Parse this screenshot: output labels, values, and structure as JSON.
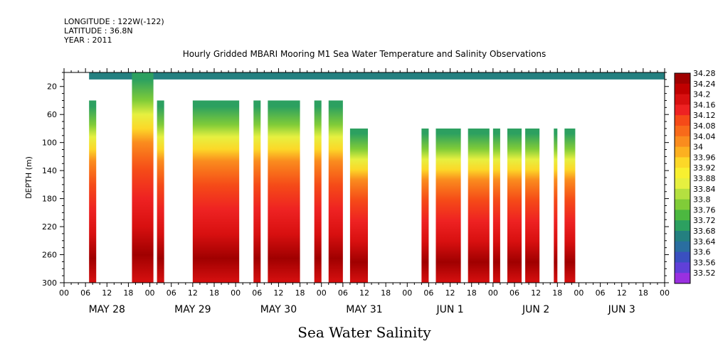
{
  "header": {
    "longitude": "LONGITUDE : 122W(-122)",
    "latitude": "LATITUDE : 36.8N",
    "year": "YEAR : 2011"
  },
  "chart_data": {
    "type": "heatmap",
    "title": "Hourly Gridded MBARI Mooring M1 Sea Water Temperature and Salinity Observations",
    "xlabel": "Sea Water Salinity",
    "ylabel": "DEPTH (m)",
    "x_day_labels": [
      "MAY 28",
      "MAY 29",
      "MAY 30",
      "MAY 31",
      "JUN  1",
      "JUN  2",
      "JUN  3"
    ],
    "x_hour_labels": [
      "00",
      "06",
      "12",
      "18",
      "00",
      "06",
      "12",
      "18",
      "00",
      "06",
      "12",
      "18",
      "00",
      "06",
      "12",
      "18",
      "00",
      "06",
      "12",
      "18",
      "00",
      "06",
      "12",
      "18",
      "00",
      "06",
      "12",
      "18",
      "00"
    ],
    "xlim_hours": [
      0,
      168
    ],
    "ylim": [
      300,
      0
    ],
    "y_ticks": [
      20,
      60,
      100,
      140,
      180,
      220,
      260,
      300
    ],
    "colorbar": {
      "labels": [
        "34.28",
        "34.24",
        "34.2",
        "34.16",
        "34.12",
        "34.08",
        "34.04",
        "34",
        "33.96",
        "33.92",
        "33.88",
        "33.84",
        "33.8",
        "33.76",
        "33.72",
        "33.68",
        "33.64",
        "33.6",
        "33.56",
        "33.52"
      ],
      "colors": [
        "#a00000",
        "#c00000",
        "#d81010",
        "#ee2222",
        "#f54a18",
        "#f86a1a",
        "#fa8c1e",
        "#fcb020",
        "#fcd828",
        "#f8f030",
        "#e6f040",
        "#b4e040",
        "#80cc38",
        "#4cb840",
        "#2ca060",
        "#248080",
        "#2a6ea0",
        "#3a50c0",
        "#6040d8",
        "#9a30e0"
      ]
    },
    "salinity_profile": [
      {
        "depth": 10,
        "salinity": 33.72
      },
      {
        "depth": 40,
        "salinity": 33.8
      },
      {
        "depth": 60,
        "salinity": 33.88
      },
      {
        "depth": 80,
        "salinity": 33.96
      },
      {
        "depth": 100,
        "salinity": 34.02
      },
      {
        "depth": 120,
        "salinity": 34.06
      },
      {
        "depth": 140,
        "salinity": 34.1
      },
      {
        "depth": 180,
        "salinity": 34.13
      },
      {
        "depth": 220,
        "salinity": 34.18
      },
      {
        "depth": 260,
        "salinity": 34.25
      },
      {
        "depth": 300,
        "salinity": 34.2
      }
    ],
    "data_segments_hours": [
      [
        7,
        9,
        40
      ],
      [
        19,
        25,
        0
      ],
      [
        26,
        28,
        40
      ],
      [
        36,
        49,
        40
      ],
      [
        53,
        55,
        40
      ],
      [
        57,
        66,
        40
      ],
      [
        70,
        72,
        40
      ],
      [
        74,
        78,
        40
      ],
      [
        80,
        85,
        80
      ],
      [
        100,
        102,
        80
      ],
      [
        104,
        111,
        80
      ],
      [
        113,
        119,
        80
      ],
      [
        120,
        122,
        80
      ],
      [
        124,
        128,
        80
      ],
      [
        129,
        133,
        80
      ],
      [
        137,
        138,
        80
      ],
      [
        140,
        143,
        80
      ]
    ],
    "surface_band": {
      "depth_top": 0,
      "depth_bottom": 10,
      "salinity": 33.7
    }
  }
}
